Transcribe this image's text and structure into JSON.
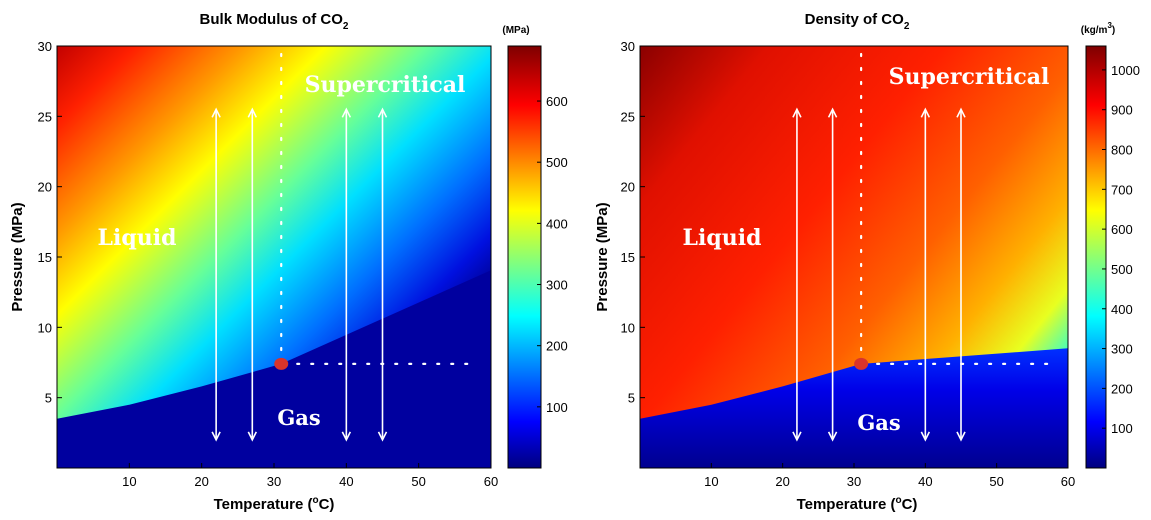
{
  "chart_data": [
    {
      "type": "heatmap",
      "title": "Bulk Modulus of CO",
      "title_subscript": "2",
      "xlabel": "Temperature (",
      "xlabel_sup": "o",
      "xlabel_end": "C)",
      "ylabel": "Pressure (MPa)",
      "xlim": [
        0,
        60
      ],
      "ylim": [
        0,
        30
      ],
      "xticks": [
        10,
        20,
        30,
        40,
        50,
        60
      ],
      "yticks": [
        5,
        10,
        15,
        20,
        25,
        30
      ],
      "colorbar": {
        "unit": "(MPa)",
        "unit_sup": "",
        "unit_end": "",
        "range": [
          0,
          690
        ],
        "ticks": [
          100,
          200,
          300,
          400,
          500,
          600
        ]
      },
      "regions": {
        "liquid": "Liquid",
        "supercritical": "Supercritical",
        "gas": "Gas"
      },
      "critical_point": {
        "temperature": 31,
        "pressure": 7.4
      },
      "boundary": [
        [
          0,
          3.5
        ],
        [
          10,
          4.5
        ],
        [
          20,
          5.8
        ],
        [
          31,
          7.4
        ]
      ],
      "arrows_temperature": [
        22,
        27,
        40,
        45
      ],
      "arrows_pressure_range": [
        2,
        25.5
      ]
    },
    {
      "type": "heatmap",
      "title": "Density of CO",
      "title_subscript": "2",
      "xlabel": "Temperature (",
      "xlabel_sup": "o",
      "xlabel_end": "C)",
      "ylabel": "Pressure (MPa)",
      "xlim": [
        0,
        60
      ],
      "ylim": [
        0,
        30
      ],
      "xticks": [
        10,
        20,
        30,
        40,
        50,
        60
      ],
      "yticks": [
        5,
        10,
        15,
        20,
        25,
        30
      ],
      "colorbar": {
        "unit": "(kg/m",
        "unit_sup": "3",
        "unit_end": ")",
        "range": [
          0,
          1060
        ],
        "ticks": [
          100,
          200,
          300,
          400,
          500,
          600,
          700,
          800,
          900,
          1000
        ]
      },
      "regions": {
        "liquid": "Liquid",
        "supercritical": "Supercritical",
        "gas": "Gas"
      },
      "critical_point": {
        "temperature": 31,
        "pressure": 7.4
      },
      "boundary": [
        [
          0,
          3.5
        ],
        [
          10,
          4.5
        ],
        [
          20,
          5.8
        ],
        [
          31,
          7.4
        ]
      ],
      "arrows_temperature": [
        22,
        27,
        40,
        45
      ],
      "arrows_pressure_range": [
        2,
        25.5
      ]
    }
  ],
  "colors": {
    "jet": [
      "#00007f",
      "#0000ff",
      "#007fff",
      "#00ffff",
      "#7fff7f",
      "#ffff00",
      "#ff7f00",
      "#ff0000",
      "#7f0000"
    ],
    "critical_point": "#d9342b",
    "overlay": "#ffffff"
  }
}
